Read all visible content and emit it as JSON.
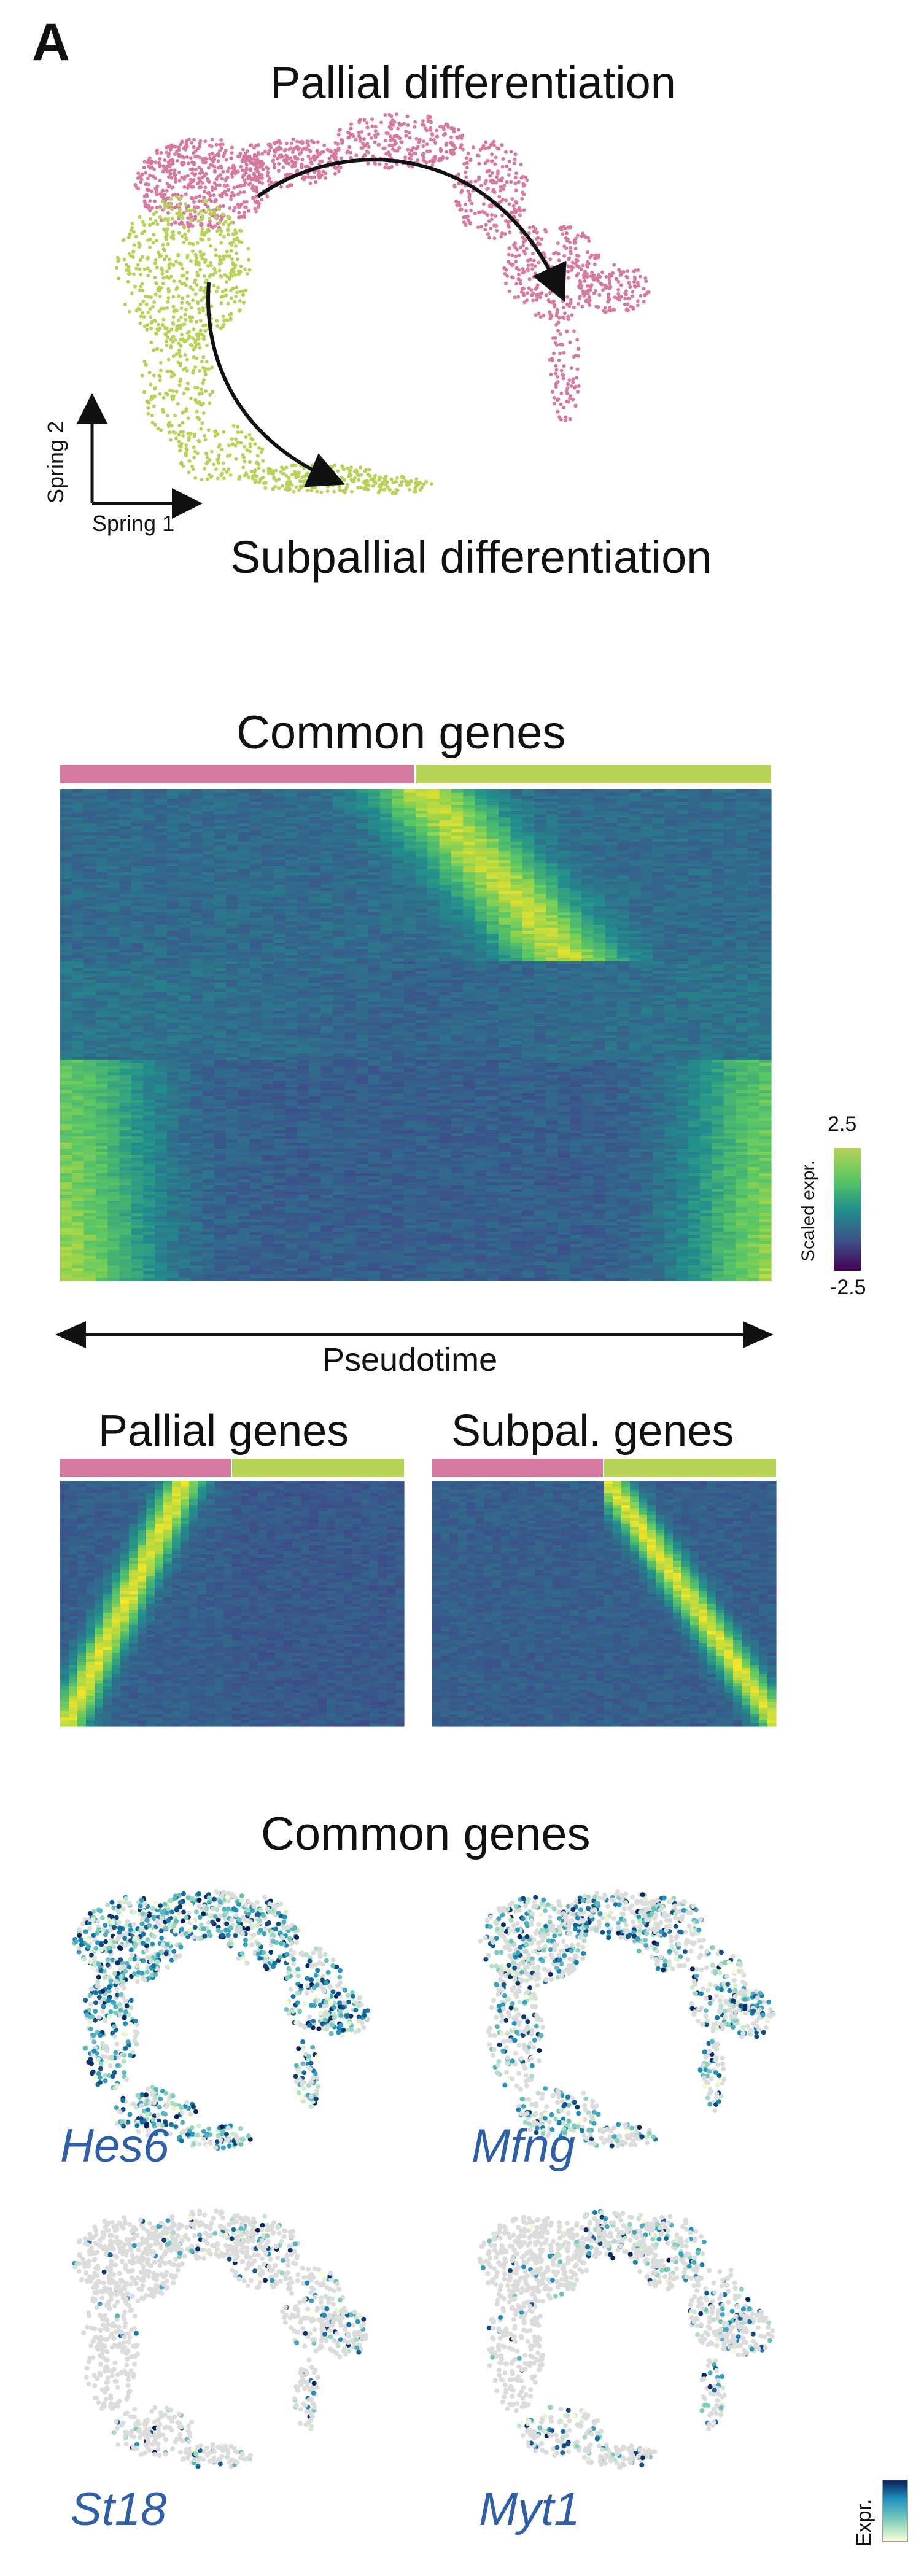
{
  "panel_label": "A",
  "spring": {
    "title_top": "Pallial differentiation",
    "title_bottom": "Subpallial differentiation",
    "axis_x": "Spring 1",
    "axis_y": "Spring 2"
  },
  "heatmaps": {
    "common_title": "Common genes",
    "pallial_title": "Pallial genes",
    "subpallial_title": "Subpal. genes",
    "pseudotime_label": "Pseudotime",
    "colorbar_title": "Scaled expr.",
    "colorbar_max": "2.5",
    "colorbar_min": "-2.5"
  },
  "feature_plots": {
    "title": "Common genes",
    "genes": [
      "Hes6",
      "Mfng",
      "St18",
      "Myt1"
    ],
    "legend_label": "Expr."
  },
  "colors": {
    "pallial": "#d77aa2",
    "subpallial": "#b6d257",
    "gene_label": "#2f5fa8"
  }
}
